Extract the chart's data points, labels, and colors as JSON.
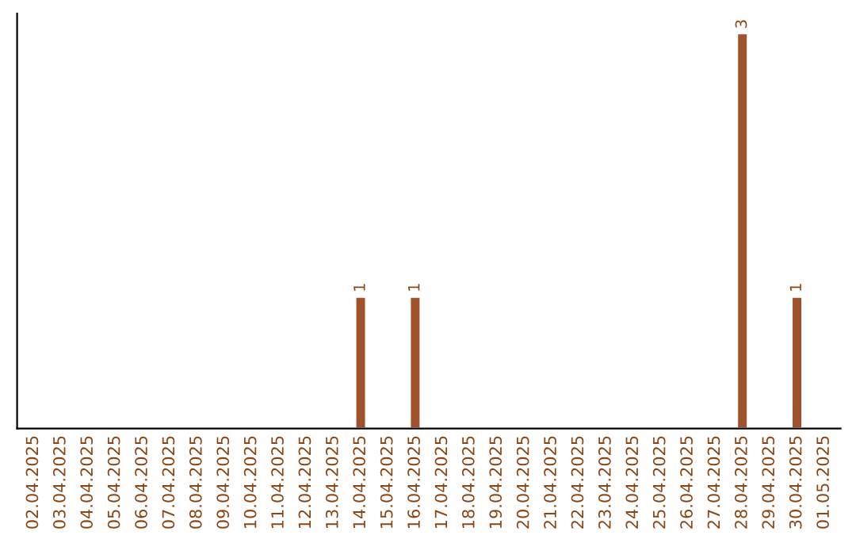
{
  "chart_data": {
    "type": "bar",
    "categories": [
      "02.04.2025",
      "03.04.2025",
      "04.04.2025",
      "05.04.2025",
      "06.04.2025",
      "07.04.2025",
      "08.04.2025",
      "09.04.2025",
      "10.04.2025",
      "11.04.2025",
      "12.04.2025",
      "13.04.2025",
      "14.04.2025",
      "15.04.2025",
      "16.04.2025",
      "17.04.2025",
      "18.04.2025",
      "19.04.2025",
      "20.04.2025",
      "21.04.2025",
      "22.04.2025",
      "23.04.2025",
      "24.04.2025",
      "25.04.2025",
      "26.04.2025",
      "27.04.2025",
      "28.04.2025",
      "29.04.2025",
      "30.04.2025",
      "01.05.2025"
    ],
    "values": [
      null,
      null,
      null,
      null,
      null,
      null,
      null,
      null,
      null,
      null,
      null,
      null,
      1,
      null,
      1,
      null,
      null,
      null,
      null,
      null,
      null,
      null,
      null,
      null,
      null,
      null,
      3,
      null,
      1,
      null
    ],
    "value_labels": [
      null,
      null,
      null,
      null,
      null,
      null,
      null,
      null,
      null,
      null,
      null,
      null,
      "1",
      null,
      "1",
      null,
      null,
      null,
      null,
      null,
      null,
      null,
      null,
      null,
      null,
      null,
      "3",
      null,
      "1",
      null
    ],
    "color": "#a0522d",
    "tick_labels": "x",
    "grid": false,
    "legend": false
  }
}
